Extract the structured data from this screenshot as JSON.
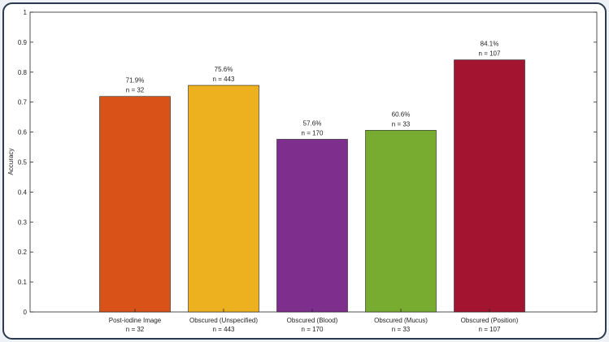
{
  "chart_data": {
    "type": "bar",
    "categories": [
      "Post-iodine Image",
      "Obscured (Unspecified)",
      "Obscured (Blood)",
      "Obscured (Mucus)",
      "Obscured (Position)"
    ],
    "category_counts": [
      "n = 32",
      "n = 443",
      "n = 170",
      "n = 33",
      "n = 107"
    ],
    "values": [
      0.719,
      0.756,
      0.576,
      0.606,
      0.841
    ],
    "value_labels": [
      "71.9%",
      "75.6%",
      "57.6%",
      "60.6%",
      "84.1%"
    ],
    "n_labels": [
      "n = 32",
      "n = 443",
      "n = 170",
      "n = 33",
      "n = 107"
    ],
    "colors": [
      "#d95319",
      "#edb120",
      "#7e2f8e",
      "#77ac30",
      "#a2142f"
    ],
    "ylabel": "Accuracy",
    "xlabel": "",
    "title": "",
    "ylim": [
      0,
      1
    ],
    "yticks": [
      "0",
      "0.1",
      "0.2",
      "0.3",
      "0.4",
      "0.5",
      "0.6",
      "0.7",
      "0.8",
      "0.9",
      "1"
    ],
    "grid": false
  }
}
